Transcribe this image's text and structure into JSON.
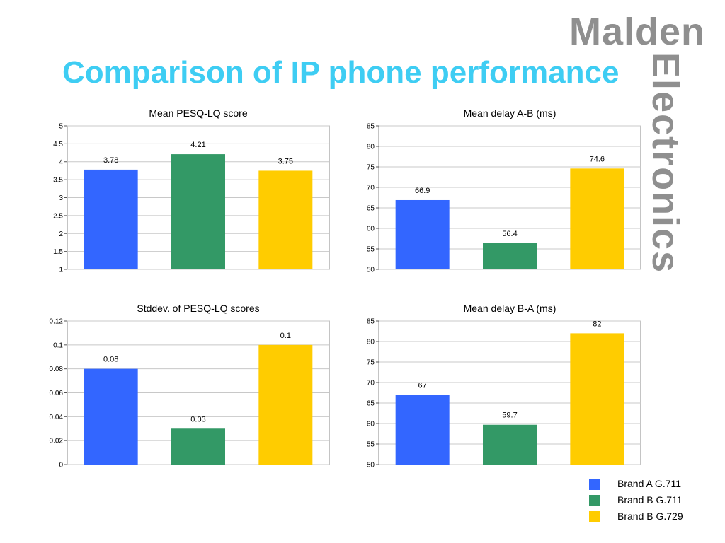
{
  "slide": {
    "title": "Comparison of IP phone performance",
    "brand_top": "Malden",
    "brand_side": "Electronics",
    "title_color": "#3ecdf3",
    "brand_color": "#8f8f8f"
  },
  "legend": {
    "items": [
      {
        "label": "Brand A G.711",
        "color": "#3366ff"
      },
      {
        "label": "Brand B G.711",
        "color": "#339966"
      },
      {
        "label": "Brand B G.729",
        "color": "#ffcc00"
      }
    ]
  },
  "chart_data": [
    {
      "type": "bar",
      "title": "Mean PESQ-LQ score",
      "categories": [
        "Brand A G.711",
        "Brand B G.711",
        "Brand B G.729"
      ],
      "values": [
        3.78,
        4.21,
        3.75
      ],
      "data_labels": [
        "3.78",
        "4.21",
        "3.75"
      ],
      "colors": [
        "#3366ff",
        "#339966",
        "#ffcc00"
      ],
      "ylim": [
        1,
        5
      ],
      "yticks": [
        "1",
        "1.5",
        "2",
        "2.5",
        "3",
        "3.5",
        "4",
        "4.5",
        "5"
      ],
      "grid": true
    },
    {
      "type": "bar",
      "title": "Mean delay A-B (ms)",
      "categories": [
        "Brand A G.711",
        "Brand B G.711",
        "Brand B G.729"
      ],
      "values": [
        66.9,
        56.4,
        74.6
      ],
      "data_labels": [
        "66.9",
        "56.4",
        "74.6"
      ],
      "colors": [
        "#3366ff",
        "#339966",
        "#ffcc00"
      ],
      "ylim": [
        50,
        85
      ],
      "yticks": [
        "50",
        "55",
        "60",
        "65",
        "70",
        "75",
        "80",
        "85"
      ],
      "grid": true
    },
    {
      "type": "bar",
      "title": "Stddev. of PESQ-LQ scores",
      "categories": [
        "Brand A G.711",
        "Brand B G.711",
        "Brand B G.729"
      ],
      "values": [
        0.08,
        0.03,
        0.1
      ],
      "data_labels": [
        "0.08",
        "0.03",
        "0.1"
      ],
      "colors": [
        "#3366ff",
        "#339966",
        "#ffcc00"
      ],
      "ylim": [
        0,
        0.12
      ],
      "yticks": [
        "0",
        "0.02",
        "0.04",
        "0.06",
        "0.08",
        "0.1",
        "0.12"
      ],
      "grid": true
    },
    {
      "type": "bar",
      "title": "Mean delay B-A (ms)",
      "categories": [
        "Brand A G.711",
        "Brand B G.711",
        "Brand B G.729"
      ],
      "values": [
        67,
        59.7,
        82
      ],
      "data_labels": [
        "67",
        "59.7",
        "82"
      ],
      "colors": [
        "#3366ff",
        "#339966",
        "#ffcc00"
      ],
      "ylim": [
        50,
        85
      ],
      "yticks": [
        "50",
        "55",
        "60",
        "65",
        "70",
        "75",
        "80",
        "85"
      ],
      "grid": true
    }
  ]
}
